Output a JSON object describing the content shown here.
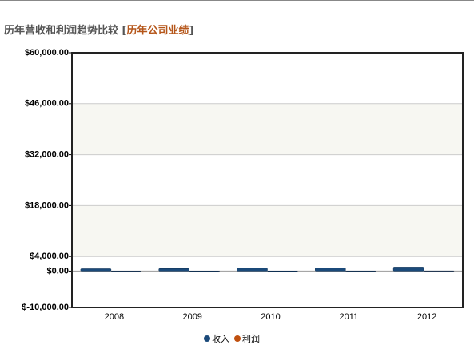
{
  "chart_data": {
    "type": "bar",
    "title": "历年营收和利润趋势比较",
    "subtitle_open": "[",
    "subtitle": "历年公司业绩",
    "subtitle_close": "]",
    "categories": [
      "2008",
      "2009",
      "2010",
      "2011",
      "2012"
    ],
    "series": [
      {
        "name": "收入",
        "color": "#1b4a7a",
        "values": [
          650,
          700,
          800,
          900,
          1100
        ]
      },
      {
        "name": "利润",
        "color": "#c0500f",
        "values": [
          30,
          35,
          40,
          45,
          55
        ]
      }
    ],
    "ylim": [
      -10000,
      60000
    ],
    "yticks": [
      {
        "value": -10000,
        "label": "$-10,000.00"
      },
      {
        "value": 0,
        "label": "$0.00"
      },
      {
        "value": 4000,
        "label": "$4,000.00"
      },
      {
        "value": 18000,
        "label": "$18,000.00"
      },
      {
        "value": 32000,
        "label": "$32,000.00"
      },
      {
        "value": 46000,
        "label": "$46,000.00"
      },
      {
        "value": 60000,
        "label": "$60,000.00"
      }
    ],
    "grid": true,
    "legend": "bottom"
  }
}
